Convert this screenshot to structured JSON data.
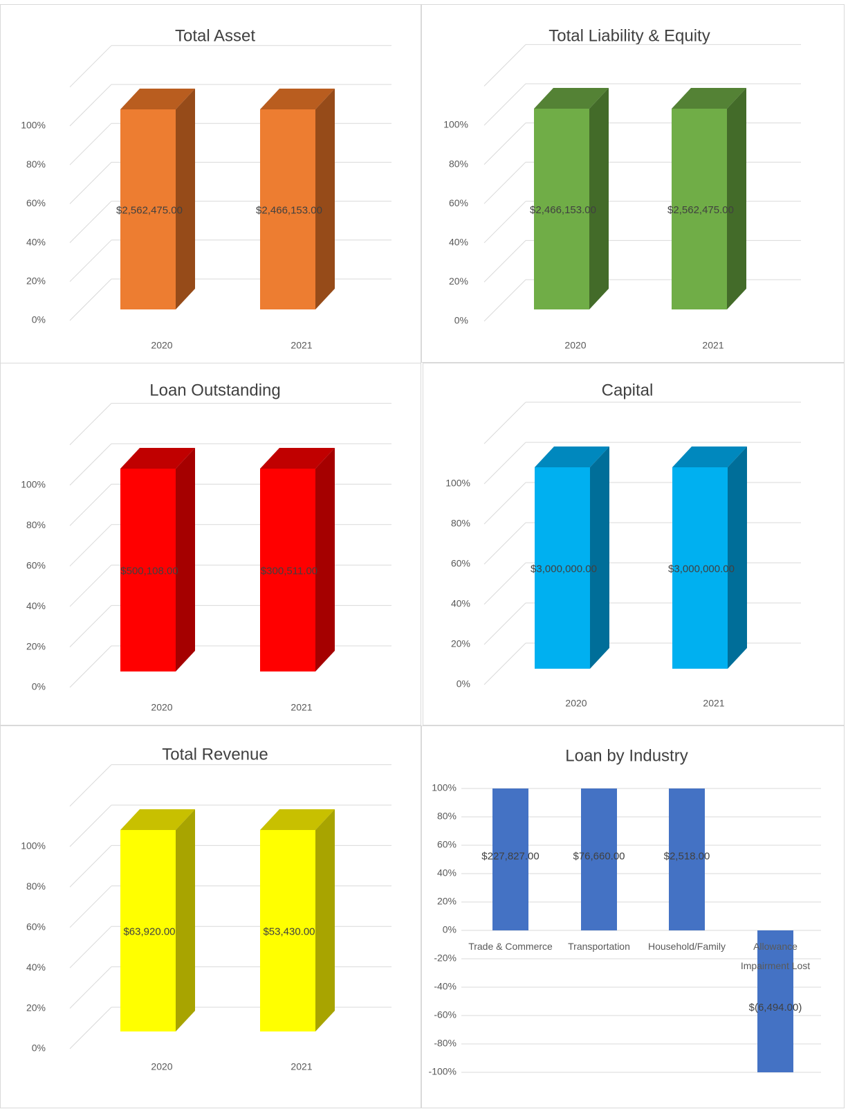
{
  "chart_data": [
    {
      "type": "bar",
      "title": "Total Asset",
      "categories": [
        "2020",
        "2021"
      ],
      "values": [
        2562475.0,
        2466153.0
      ],
      "data_labels": [
        "$2,562,475.00",
        "$2,466,153.00"
      ],
      "percent_values": [
        100,
        100
      ],
      "ytick_labels": [
        "0%",
        "20%",
        "40%",
        "60%",
        "80%",
        "100%"
      ],
      "ylim": [
        0,
        100
      ],
      "style": "3d-column",
      "grid": true,
      "colors": {
        "front": "#ED7D31",
        "top": "#B95D1F",
        "side": "#964B19"
      }
    },
    {
      "type": "bar",
      "title": "Total Liability & Equity",
      "categories": [
        "2020",
        "2021"
      ],
      "values": [
        2466153.0,
        2562475.0
      ],
      "data_labels": [
        "$2,466,153.00",
        "$2,562,475.00"
      ],
      "percent_values": [
        100,
        100
      ],
      "ytick_labels": [
        "0%",
        "20%",
        "40%",
        "60%",
        "80%",
        "100%"
      ],
      "ylim": [
        0,
        100
      ],
      "style": "3d-column",
      "grid": true,
      "colors": {
        "front": "#70AD47",
        "top": "#548235",
        "side": "#436B29"
      }
    },
    {
      "type": "bar",
      "title": "Loan Outstanding",
      "categories": [
        "2020",
        "2021"
      ],
      "values": [
        500108.0,
        300511.0
      ],
      "data_labels": [
        "$500,108.00",
        "$300,511.00"
      ],
      "percent_values": [
        100,
        100
      ],
      "ytick_labels": [
        "0%",
        "20%",
        "40%",
        "60%",
        "80%",
        "100%"
      ],
      "ylim": [
        0,
        100
      ],
      "style": "3d-column",
      "grid": true,
      "colors": {
        "front": "#FF0000",
        "top": "#C00000",
        "side": "#A50000"
      }
    },
    {
      "type": "bar",
      "title": "Capital",
      "categories": [
        "2020",
        "2021"
      ],
      "values": [
        3000000.0,
        3000000.0
      ],
      "data_labels": [
        "$3,000,000.00",
        "$3,000,000.00"
      ],
      "percent_values": [
        100,
        100
      ],
      "ytick_labels": [
        "0%",
        "20%",
        "40%",
        "60%",
        "80%",
        "100%"
      ],
      "ylim": [
        0,
        100
      ],
      "style": "3d-column",
      "grid": true,
      "colors": {
        "front": "#00B0F0",
        "top": "#0088BE",
        "side": "#006E99"
      }
    },
    {
      "type": "bar",
      "title": "Total Revenue",
      "categories": [
        "2020",
        "2021"
      ],
      "values": [
        63920.0,
        53430.0
      ],
      "data_labels": [
        "$63,920.00",
        "$53,430.00"
      ],
      "percent_values": [
        100,
        100
      ],
      "ytick_labels": [
        "0%",
        "20%",
        "40%",
        "60%",
        "80%",
        "100%"
      ],
      "ylim": [
        0,
        100
      ],
      "style": "3d-column",
      "grid": true,
      "colors": {
        "front": "#FFFF00",
        "top": "#C8C000",
        "side": "#A8A400"
      }
    },
    {
      "type": "bar",
      "title": "Loan by Industry",
      "categories": [
        "Trade & Commerce",
        "Transportation",
        "Household/Family",
        "Allowance Impairment Lost"
      ],
      "category_lines": [
        [
          "Trade & Commerce"
        ],
        [
          "Transportation"
        ],
        [
          "Household/Family"
        ],
        [
          "Allowance",
          "Impairment Lost"
        ]
      ],
      "values": [
        227827.0,
        76660.0,
        2518.0,
        -6494.0
      ],
      "data_labels": [
        "$227,827.00",
        "$76,660.00",
        "$2,518.00",
        "$(6,494.00)"
      ],
      "percent_values": [
        100,
        100,
        100,
        -100
      ],
      "ytick_labels": [
        "-100%",
        "-80%",
        "-60%",
        "-40%",
        "-20%",
        "0%",
        "20%",
        "40%",
        "60%",
        "80%",
        "100%"
      ],
      "ylim": [
        -100,
        100
      ],
      "style": "2d-column",
      "grid": true,
      "colors": {
        "front": "#4472C4"
      }
    }
  ]
}
